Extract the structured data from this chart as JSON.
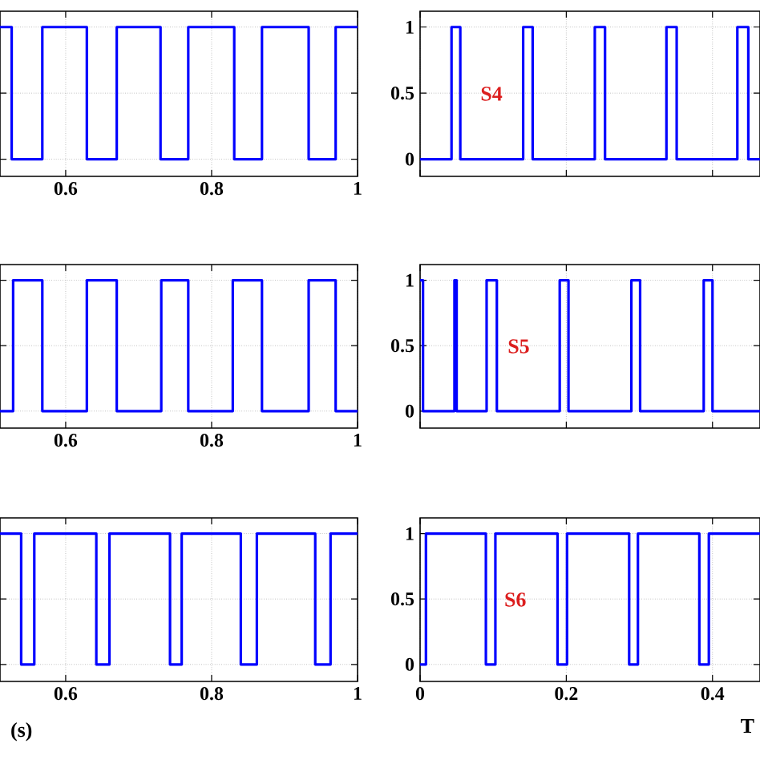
{
  "chart_data": [
    {
      "type": "step",
      "x": [
        0.51,
        0.526,
        0.568,
        0.629,
        0.67,
        0.73,
        0.768,
        0.831,
        0.869,
        0.933,
        0.97,
        1
      ],
      "series": [
        {
          "color": "#0000ff",
          "values": [
            1,
            0,
            1,
            0,
            1,
            0,
            1,
            0,
            1,
            0,
            1,
            1
          ]
        }
      ],
      "xlim": [
        0.51,
        1
      ],
      "ylim": [
        -0.13,
        1.12
      ],
      "xticks": [
        0.6,
        0.8,
        1
      ],
      "yticks": [
        0,
        0.5,
        1
      ],
      "grid": true,
      "tick_labels": "x"
    },
    {
      "type": "step",
      "x": [
        0,
        0.043,
        0.055,
        0.141,
        0.154,
        0.239,
        0.253,
        0.337,
        0.351,
        0.434,
        0.449,
        0.465
      ],
      "series": [
        {
          "name": "S4",
          "color": "#0000ff",
          "values": [
            0,
            1,
            0,
            1,
            0,
            1,
            0,
            1,
            0,
            1,
            0,
            0
          ]
        }
      ],
      "xlim": [
        0,
        0.465
      ],
      "ylim": [
        -0.13,
        1.12
      ],
      "xticks": [
        0,
        0.2,
        0.4
      ],
      "yticks": [
        0,
        0.5,
        1
      ],
      "grid": true,
      "tick_labels": "y"
    },
    {
      "type": "step",
      "x": [
        0.51,
        0.528,
        0.568,
        0.629,
        0.67,
        0.731,
        0.768,
        0.829,
        0.869,
        0.933,
        0.97,
        1
      ],
      "series": [
        {
          "color": "#0000ff",
          "values": [
            0,
            1,
            0,
            1,
            0,
            1,
            0,
            1,
            0,
            1,
            0,
            0
          ]
        }
      ],
      "xlim": [
        0.51,
        1
      ],
      "ylim": [
        -0.13,
        1.12
      ],
      "xticks": [
        0.6,
        0.8,
        1
      ],
      "yticks": [
        0,
        0.5,
        1
      ],
      "grid": true,
      "tick_labels": "x"
    },
    {
      "type": "step",
      "x": [
        0,
        0.004,
        0.047,
        0.05,
        0.091,
        0.105,
        0.191,
        0.203,
        0.289,
        0.301,
        0.388,
        0.4,
        0.465
      ],
      "series": [
        {
          "name": "S5",
          "color": "#0000ff",
          "values": [
            1,
            0,
            1,
            0,
            1,
            0,
            1,
            0,
            1,
            0,
            1,
            0,
            0
          ]
        }
      ],
      "xlim": [
        0,
        0.465
      ],
      "ylim": [
        -0.13,
        1.12
      ],
      "xticks": [
        0,
        0.2,
        0.4
      ],
      "yticks": [
        0,
        0.5,
        1
      ],
      "grid": true,
      "tick_labels": "y"
    },
    {
      "type": "step",
      "x": [
        0.51,
        0.539,
        0.557,
        0.642,
        0.66,
        0.743,
        0.759,
        0.84,
        0.862,
        0.942,
        0.963,
        1
      ],
      "series": [
        {
          "color": "#0000ff",
          "values": [
            1,
            0,
            1,
            0,
            1,
            0,
            1,
            0,
            1,
            0,
            1,
            1
          ]
        }
      ],
      "xlim": [
        0.51,
        1
      ],
      "ylim": [
        -0.13,
        1.12
      ],
      "xticks": [
        0.6,
        0.8,
        1
      ],
      "yticks": [
        0,
        0.5,
        1
      ],
      "grid": true,
      "tick_labels": "x",
      "xlabel": "(s)"
    },
    {
      "type": "step",
      "x": [
        0,
        0.008,
        0.09,
        0.103,
        0.188,
        0.201,
        0.286,
        0.298,
        0.382,
        0.395,
        0.465
      ],
      "series": [
        {
          "name": "S6",
          "color": "#0000ff",
          "values": [
            0,
            1,
            0,
            1,
            0,
            1,
            0,
            1,
            0,
            1,
            1
          ]
        }
      ],
      "xlim": [
        0,
        0.465
      ],
      "ylim": [
        -0.13,
        1.12
      ],
      "xticks": [
        0,
        0.2,
        0.4
      ],
      "yticks": [
        0,
        0.5,
        1
      ],
      "grid": true,
      "xlabel": "T"
    }
  ]
}
